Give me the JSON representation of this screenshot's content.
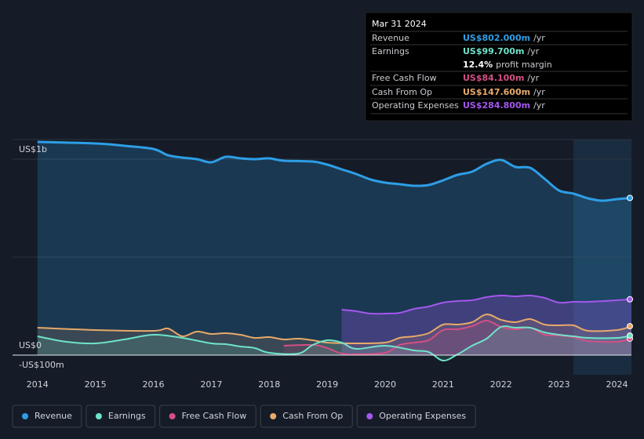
{
  "chart_data": {
    "type": "line",
    "xlim": [
      2013.57,
      2024.25
    ],
    "xticks": [
      2014,
      2015,
      2016,
      2017,
      2018,
      2019,
      2020,
      2021,
      2022,
      2023,
      2024
    ],
    "ylim": [
      -100,
      1100
    ],
    "yticks": [
      {
        "value": 1000,
        "label": "US$1b"
      },
      {
        "value": 0,
        "label": "US$0"
      },
      {
        "value": -100,
        "label": "-US$100m"
      }
    ],
    "ygrid": [
      1000,
      500
    ],
    "shaded_range": [
      2023.25,
      2024.25
    ],
    "series": [
      {
        "name": "Revenue",
        "color": "#2e9ee6",
        "x": [
          2014,
          2015,
          2015.5,
          2016,
          2016.25,
          2016.5,
          2016.75,
          2017,
          2017.25,
          2017.5,
          2017.75,
          2018,
          2018.25,
          2018.75,
          2019,
          2019.25,
          2019.5,
          2019.75,
          2020,
          2020.25,
          2020.5,
          2020.75,
          2021,
          2021.25,
          2021.5,
          2021.75,
          2022,
          2022.25,
          2022.5,
          2022.75,
          2023,
          2023.25,
          2023.5,
          2023.75,
          2024,
          2024.25
        ],
        "values": [
          1088,
          1080,
          1068,
          1052,
          1020,
          1008,
          1000,
          984,
          1012,
          1004,
          1000,
          1004,
          992,
          988,
          972,
          948,
          924,
          896,
          880,
          872,
          864,
          868,
          892,
          920,
          936,
          976,
          996,
          960,
          956,
          900,
          840,
          824,
          800,
          788,
          796,
          802
        ]
      },
      {
        "name": "Earnings",
        "color": "#6fe3c9",
        "x": [
          2014,
          2014.5,
          2015,
          2015.5,
          2016,
          2016.5,
          2017,
          2017.25,
          2017.5,
          2017.75,
          2018,
          2018.5,
          2018.75,
          2019,
          2019.25,
          2019.5,
          2020,
          2020.5,
          2020.75,
          2021,
          2021.25,
          2021.5,
          2021.75,
          2022,
          2022.25,
          2022.5,
          2022.75,
          2023,
          2023.25,
          2023.5,
          2024,
          2024.25
        ],
        "values": [
          96,
          68,
          60,
          80,
          104,
          88,
          60,
          56,
          44,
          36,
          12,
          8,
          52,
          76,
          64,
          32,
          48,
          24,
          16,
          -28,
          4,
          48,
          84,
          144,
          140,
          140,
          116,
          104,
          96,
          88,
          88,
          99.7
        ]
      },
      {
        "name": "Free Cash Flow",
        "color": "#d44f86",
        "x": [
          2018.25,
          2018.75,
          2019,
          2019.25,
          2019.5,
          2020,
          2020.25,
          2020.5,
          2020.75,
          2021,
          2021.25,
          2021.5,
          2021.75,
          2022,
          2022.25,
          2022.5,
          2022.75,
          2023,
          2023.25,
          2023.5,
          2024,
          2024.25
        ],
        "values": [
          48,
          52,
          36,
          8,
          4,
          12,
          52,
          64,
          76,
          128,
          132,
          148,
          176,
          144,
          132,
          140,
          104,
          100,
          92,
          72,
          68,
          84.1
        ]
      },
      {
        "name": "Cash From Op",
        "color": "#e8a96a",
        "x": [
          2014,
          2015,
          2016,
          2016.25,
          2016.5,
          2016.75,
          2017,
          2017.25,
          2017.5,
          2017.75,
          2018,
          2018.25,
          2018.5,
          2018.75,
          2019,
          2019.5,
          2020,
          2020.25,
          2020.5,
          2020.75,
          2021,
          2021.25,
          2021.5,
          2021.75,
          2022,
          2022.25,
          2022.5,
          2022.75,
          2023,
          2023.25,
          2023.5,
          2024,
          2024.25
        ],
        "values": [
          140,
          128,
          124,
          136,
          96,
          120,
          108,
          112,
          104,
          88,
          92,
          80,
          84,
          76,
          64,
          60,
          64,
          88,
          96,
          112,
          156,
          156,
          168,
          208,
          180,
          168,
          184,
          156,
          152,
          152,
          124,
          128,
          147.6
        ]
      },
      {
        "name": "Operating Expenses",
        "color": "#a457ee",
        "x": [
          2019.25,
          2019.5,
          2019.75,
          2020,
          2020.25,
          2020.5,
          2020.75,
          2021,
          2021.25,
          2021.5,
          2021.75,
          2022,
          2022.25,
          2022.5,
          2022.75,
          2023,
          2023.25,
          2023.5,
          2024,
          2024.25
        ],
        "values": [
          232,
          224,
          212,
          212,
          216,
          236,
          248,
          268,
          276,
          280,
          296,
          304,
          300,
          304,
          292,
          268,
          272,
          272,
          280,
          284.8
        ]
      }
    ],
    "tooltip": {
      "date": "Mar 31 2024",
      "rows": [
        {
          "label": "Revenue",
          "value": "US$802.000m",
          "unit": "/yr"
        },
        {
          "label": "Earnings",
          "value": "US$99.700m",
          "unit": "/yr"
        },
        {
          "label": "Free Cash Flow",
          "value": "US$84.100m",
          "unit": "/yr"
        },
        {
          "label": "Cash From Op",
          "value": "US$147.600m",
          "unit": "/yr"
        },
        {
          "label": "Operating Expenses",
          "value": "US$284.800m",
          "unit": "/yr"
        }
      ],
      "margin": {
        "value": "12.4%",
        "text": "profit margin"
      }
    }
  }
}
